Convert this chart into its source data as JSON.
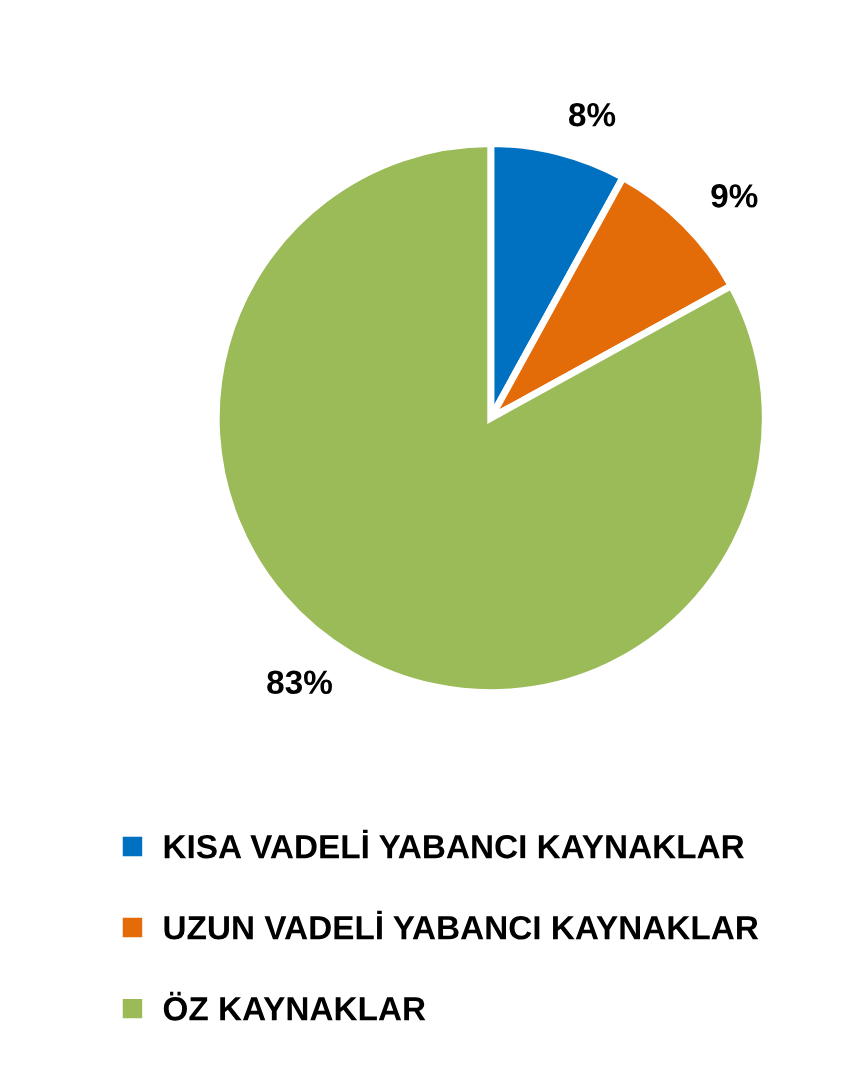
{
  "chart_data": {
    "type": "pie",
    "categories": [
      "KISA VADELİ YABANCI KAYNAKLAR",
      "UZUN VADELİ YABANCI KAYNAKLAR",
      "ÖZ KAYNAKLAR"
    ],
    "values": [
      8,
      9,
      83
    ],
    "colors": [
      "#0070c0",
      "#e36c09",
      "#9bbb59"
    ],
    "value_labels": [
      "8%",
      "9%",
      "83%"
    ],
    "legend": "bottom"
  }
}
